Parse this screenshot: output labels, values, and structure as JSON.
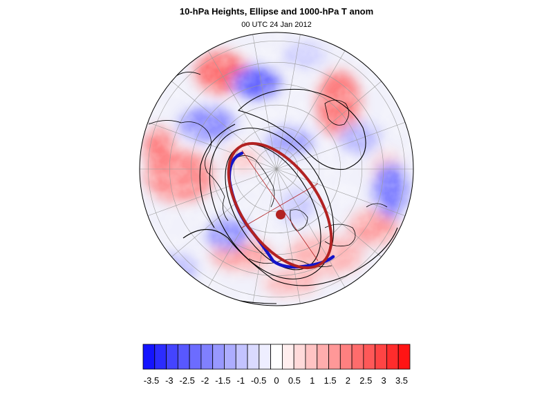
{
  "header": {
    "title": "10-hPa Heights, Ellipse and 1000-hPa T anom",
    "subtitle": "00 UTC 24 Jan 2012"
  },
  "colorbar": {
    "labels": [
      "-3.5",
      "-3",
      "-2.5",
      "-2",
      "-1.5",
      "-1",
      "-0.5",
      "0",
      "0.5",
      "1",
      "1.5",
      "2",
      "2.5",
      "3",
      "3.5"
    ],
    "colors": [
      "#1414ff",
      "#2c2cff",
      "#4444ff",
      "#5858ff",
      "#6c6cff",
      "#8080ff",
      "#9898ff",
      "#adadff",
      "#c3c3ff",
      "#dadaff",
      "#eeeeff",
      "#ffffff",
      "#ffeeee",
      "#ffdada",
      "#ffc3c3",
      "#ffadad",
      "#ff9898",
      "#ff8080",
      "#ff6c6c",
      "#ff5858",
      "#ff4444",
      "#ff2c2c",
      "#ff1414"
    ]
  },
  "colors": {
    "ellipse": "#b22222",
    "vortex_edge": "#1414c8",
    "contour": "#000000",
    "graticule": "#b0b0b0",
    "warm": "#ff5a5a",
    "cold": "#5a5aff"
  }
}
